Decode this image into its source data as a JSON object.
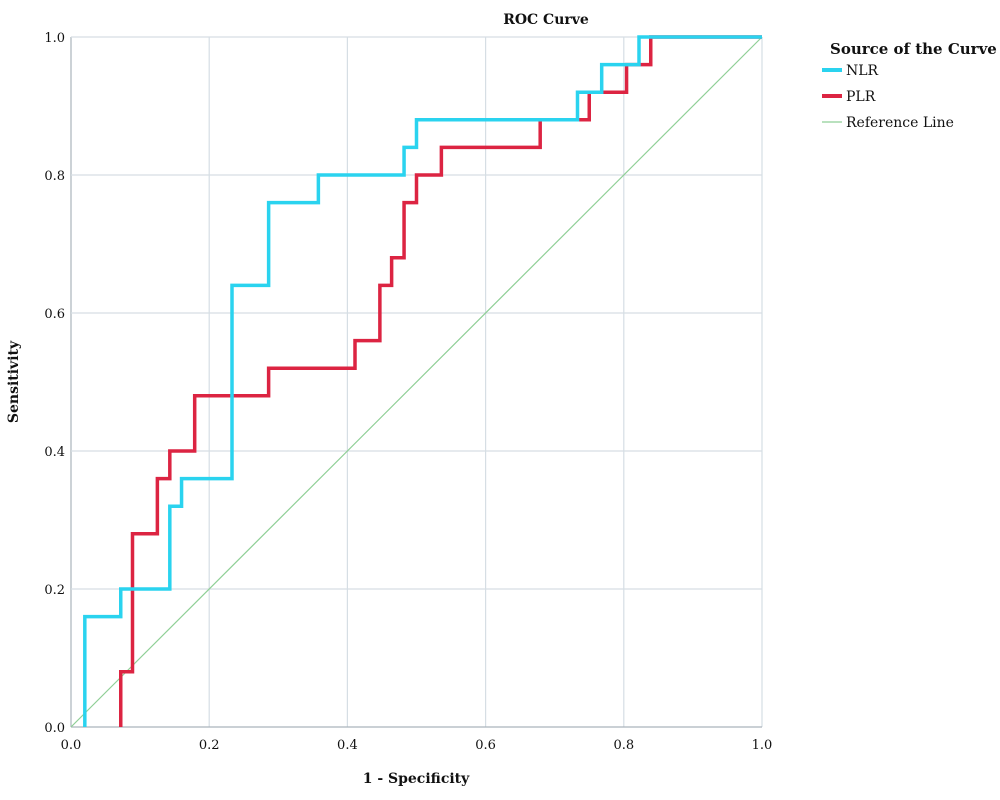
{
  "chart_data": {
    "type": "line",
    "title": "ROC Curve",
    "xlabel": "1 - Specificity",
    "ylabel": "Sensitivity",
    "xlim": [
      0,
      1
    ],
    "ylim": [
      0,
      1
    ],
    "xticks": [
      "0.0",
      "0.2",
      "0.4",
      "0.6",
      "0.8",
      "1.0"
    ],
    "yticks": [
      "0.0",
      "0.2",
      "0.4",
      "0.6",
      "0.8",
      "1.0"
    ],
    "grid": true,
    "legend": {
      "title": "Source of the Curve",
      "placement": "top-right outside"
    },
    "series": [
      {
        "name": "NLR",
        "color": "#2ad3ef",
        "points": [
          [
            0.02,
            0
          ],
          [
            0.02,
            0.16
          ],
          [
            0.072,
            0.16
          ],
          [
            0.072,
            0.2
          ],
          [
            0.143,
            0.2
          ],
          [
            0.143,
            0.32
          ],
          [
            0.16,
            0.32
          ],
          [
            0.16,
            0.36
          ],
          [
            0.233,
            0.36
          ],
          [
            0.233,
            0.64
          ],
          [
            0.286,
            0.64
          ],
          [
            0.286,
            0.76
          ],
          [
            0.358,
            0.76
          ],
          [
            0.358,
            0.8
          ],
          [
            0.482,
            0.8
          ],
          [
            0.482,
            0.84
          ],
          [
            0.5,
            0.84
          ],
          [
            0.5,
            0.88
          ],
          [
            0.733,
            0.88
          ],
          [
            0.733,
            0.92
          ],
          [
            0.768,
            0.92
          ],
          [
            0.768,
            0.96
          ],
          [
            0.822,
            0.96
          ],
          [
            0.822,
            1
          ],
          [
            1,
            1
          ]
        ]
      },
      {
        "name": "PLR",
        "color": "#dc2442",
        "points": [
          [
            0.072,
            0
          ],
          [
            0.072,
            0.08
          ],
          [
            0.089,
            0.08
          ],
          [
            0.089,
            0.28
          ],
          [
            0.125,
            0.28
          ],
          [
            0.125,
            0.36
          ],
          [
            0.143,
            0.36
          ],
          [
            0.143,
            0.4
          ],
          [
            0.179,
            0.4
          ],
          [
            0.179,
            0.48
          ],
          [
            0.286,
            0.48
          ],
          [
            0.286,
            0.52
          ],
          [
            0.411,
            0.52
          ],
          [
            0.411,
            0.56
          ],
          [
            0.447,
            0.56
          ],
          [
            0.447,
            0.64
          ],
          [
            0.464,
            0.64
          ],
          [
            0.464,
            0.68
          ],
          [
            0.482,
            0.68
          ],
          [
            0.482,
            0.76
          ],
          [
            0.5,
            0.76
          ],
          [
            0.5,
            0.8
          ],
          [
            0.536,
            0.8
          ],
          [
            0.536,
            0.84
          ],
          [
            0.679,
            0.84
          ],
          [
            0.679,
            0.88
          ],
          [
            0.75,
            0.88
          ],
          [
            0.75,
            0.92
          ],
          [
            0.804,
            0.92
          ],
          [
            0.804,
            0.96
          ],
          [
            0.839,
            0.96
          ],
          [
            0.839,
            1
          ],
          [
            1,
            1
          ]
        ]
      },
      {
        "name": "Reference Line",
        "color": "#8fcf96",
        "points": [
          [
            0,
            0
          ],
          [
            1,
            1
          ]
        ]
      }
    ]
  }
}
